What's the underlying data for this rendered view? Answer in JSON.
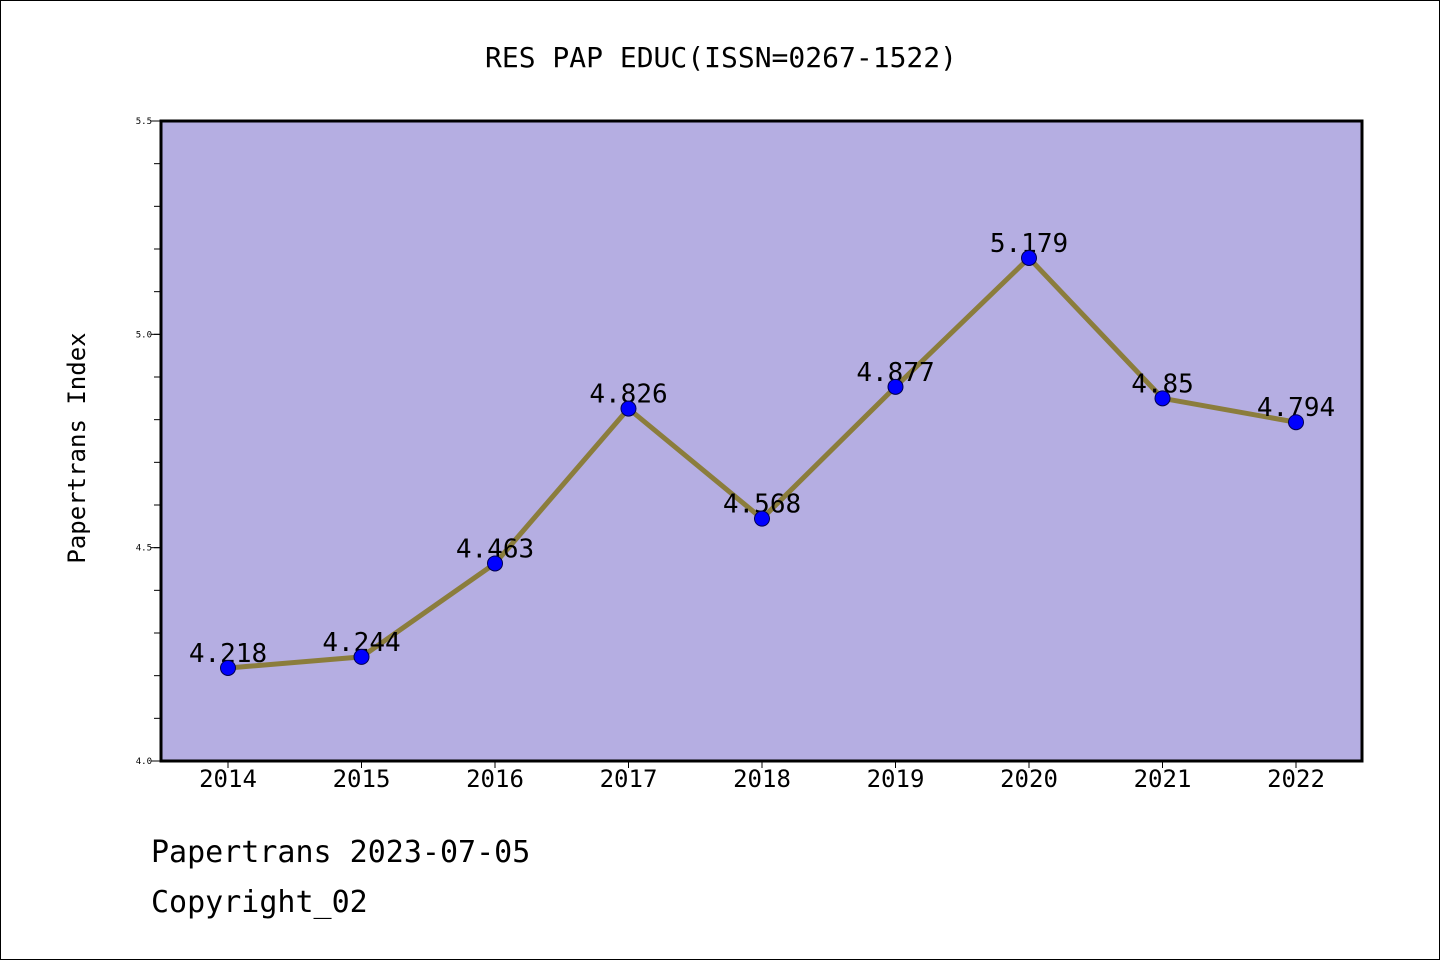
{
  "chart_data": {
    "type": "line",
    "title": "RES PAP EDUC(ISSN=0267-1522)",
    "xlabel": "",
    "ylabel": "Papertrans Index",
    "categories": [
      "2014",
      "2015",
      "2016",
      "2017",
      "2018",
      "2019",
      "2020",
      "2021",
      "2022"
    ],
    "values": [
      4.218,
      4.244,
      4.463,
      4.826,
      4.568,
      4.877,
      5.179,
      4.85,
      4.794
    ],
    "data_labels": [
      "4.218",
      "4.244",
      "4.463",
      "4.826",
      "4.568",
      "4.877",
      "5.179",
      "4.85",
      "4.794"
    ],
    "ylim": [
      4.0,
      5.5
    ],
    "yticks": [
      4.0,
      4.5,
      5.0,
      5.5
    ],
    "ytick_labels": [
      "4.0",
      "4.5",
      "5.0",
      "5.5"
    ],
    "y_minor_step": 0.1,
    "grid": false,
    "colors": {
      "plot_background": "#b5aee2",
      "line": "#8b7d3c",
      "marker": "#0000ff"
    }
  },
  "footer": {
    "line1": "Papertrans 2023-07-05",
    "line2": "Copyright_02"
  }
}
